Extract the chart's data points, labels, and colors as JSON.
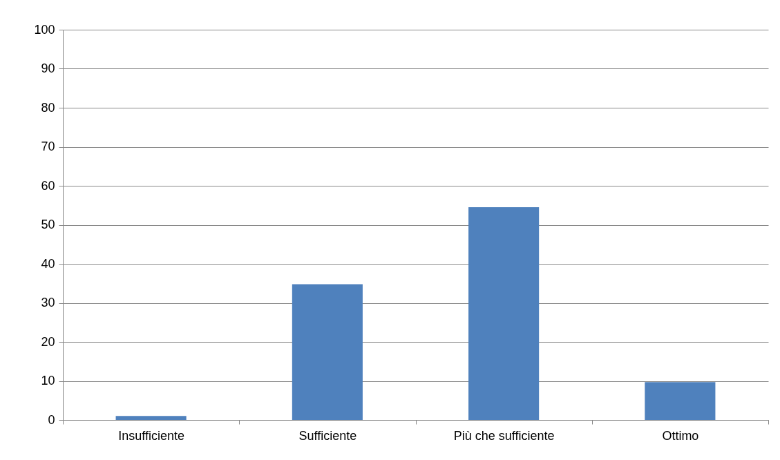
{
  "chart_data": {
    "type": "bar",
    "categories": [
      "Insufficiente",
      "Sufficiente",
      "Più che sufficiente",
      "Ottimo"
    ],
    "values": [
      1,
      34.8,
      54.5,
      9.7
    ],
    "color": "#4f81bd",
    "ylim": [
      0,
      100
    ],
    "yticks": [
      0,
      10,
      20,
      30,
      40,
      50,
      60,
      70,
      80,
      90,
      100
    ],
    "grid": "y"
  }
}
